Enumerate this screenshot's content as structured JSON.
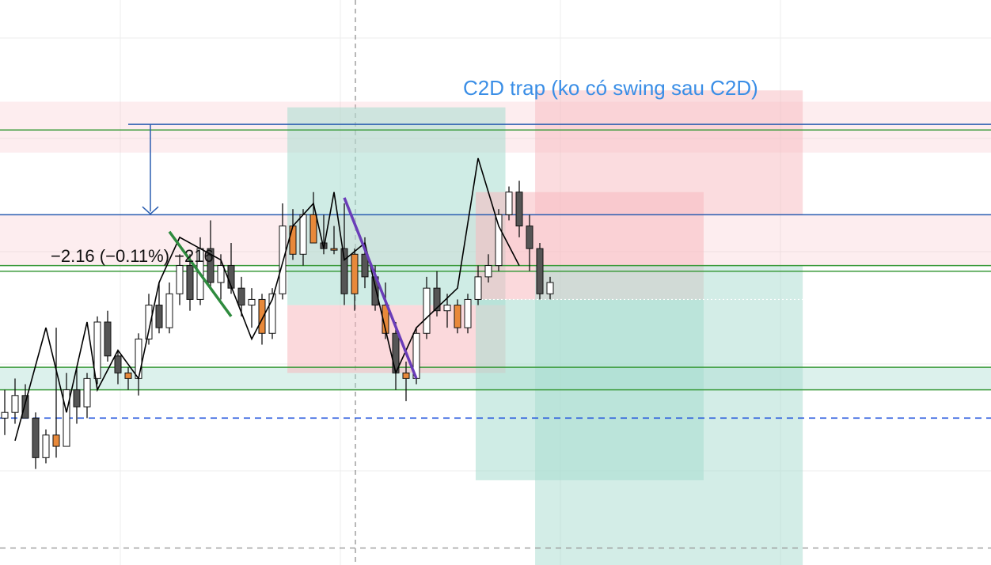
{
  "chart_data": {
    "type": "candlestick",
    "grid": true,
    "legend": "none",
    "annotations": {
      "trap_label": "C2D trap (ko có swing sau C2D)",
      "measure_label": "−2.16 (−0.11%) −216"
    },
    "colors": {
      "candle_up_fill": "#ffffff",
      "candle_down_fill": "#555555",
      "candle_highlight_fill": "#e8893a",
      "candle_border": "#111111",
      "zigzag": "#000000",
      "green_leg": "#2e8b3e",
      "purple_leg": "#6a3db8",
      "green_line": "#3a9a3a",
      "blue_line": "#2a5db0",
      "dashed_blue": "#2255dd",
      "red_zone": "#f7b9c0",
      "teal_zone": "#a8dccf",
      "label_blue": "#3a8ee6"
    },
    "price_range": [
      0,
      100
    ],
    "levels": {
      "green": [
        77,
        53,
        52,
        35,
        31
      ],
      "blue": [
        78,
        62
      ],
      "dotted_white": 47,
      "dashed_blue": 26,
      "dashed_gray": 3
    },
    "candles": [
      {
        "o": 26,
        "h": 31,
        "l": 23,
        "c": 27
      },
      {
        "o": 27,
        "h": 33,
        "l": 25,
        "c": 30
      },
      {
        "o": 30,
        "h": 32,
        "l": 26,
        "c": 26
      },
      {
        "o": 26,
        "h": 27,
        "l": 17,
        "c": 19
      },
      {
        "o": 19,
        "h": 24,
        "l": 18,
        "c": 23
      },
      {
        "o": 23,
        "h": 42,
        "l": 19,
        "c": 21,
        "hl": true
      },
      {
        "o": 21,
        "h": 34,
        "l": 21,
        "c": 31
      },
      {
        "o": 31,
        "h": 35,
        "l": 25,
        "c": 28
      },
      {
        "o": 28,
        "h": 34,
        "l": 26,
        "c": 33
      },
      {
        "o": 33,
        "h": 44,
        "l": 32,
        "c": 43
      },
      {
        "o": 43,
        "h": 45,
        "l": 36,
        "c": 37
      },
      {
        "o": 37,
        "h": 38,
        "l": 32,
        "c": 34
      },
      {
        "o": 34,
        "h": 35,
        "l": 31,
        "c": 33,
        "hl": true
      },
      {
        "o": 33,
        "h": 41,
        "l": 30,
        "c": 40
      },
      {
        "o": 40,
        "h": 48,
        "l": 39,
        "c": 46
      },
      {
        "o": 46,
        "h": 50,
        "l": 41,
        "c": 42
      },
      {
        "o": 42,
        "h": 50,
        "l": 41,
        "c": 48
      },
      {
        "o": 48,
        "h": 55,
        "l": 46,
        "c": 53
      },
      {
        "o": 53,
        "h": 55,
        "l": 45,
        "c": 47
      },
      {
        "o": 47,
        "h": 58,
        "l": 46,
        "c": 56
      },
      {
        "o": 56,
        "h": 61,
        "l": 49,
        "c": 50
      },
      {
        "o": 50,
        "h": 55,
        "l": 47,
        "c": 53
      },
      {
        "o": 53,
        "h": 57,
        "l": 48,
        "c": 49
      },
      {
        "o": 49,
        "h": 51,
        "l": 44,
        "c": 46
      },
      {
        "o": 46,
        "h": 49,
        "l": 42,
        "c": 47
      },
      {
        "o": 47,
        "h": 48,
        "l": 39,
        "c": 41,
        "hl": true
      },
      {
        "o": 41,
        "h": 49,
        "l": 40,
        "c": 48
      },
      {
        "o": 48,
        "h": 64,
        "l": 47,
        "c": 60
      },
      {
        "o": 60,
        "h": 63,
        "l": 54,
        "c": 55,
        "hl": true
      },
      {
        "o": 55,
        "h": 63,
        "l": 53,
        "c": 62
      },
      {
        "o": 62,
        "h": 66,
        "l": 57,
        "c": 57,
        "hl": true
      },
      {
        "o": 57,
        "h": 62,
        "l": 55,
        "c": 56
      },
      {
        "o": 56,
        "h": 60,
        "l": 55,
        "c": 56,
        "hl": true
      },
      {
        "o": 56,
        "h": 64,
        "l": 46,
        "c": 48
      },
      {
        "o": 48,
        "h": 56,
        "l": 45,
        "c": 55,
        "hl": true
      },
      {
        "o": 55,
        "h": 58,
        "l": 49,
        "c": 51
      },
      {
        "o": 51,
        "h": 53,
        "l": 45,
        "c": 46
      },
      {
        "o": 46,
        "h": 50,
        "l": 40,
        "c": 41,
        "hl": true
      },
      {
        "o": 41,
        "h": 43,
        "l": 31,
        "c": 34
      },
      {
        "o": 34,
        "h": 36,
        "l": 29,
        "c": 33,
        "hl": true
      },
      {
        "o": 33,
        "h": 42,
        "l": 32,
        "c": 41
      },
      {
        "o": 41,
        "h": 51,
        "l": 40,
        "c": 49
      },
      {
        "o": 49,
        "h": 52,
        "l": 44,
        "c": 45
      },
      {
        "o": 45,
        "h": 48,
        "l": 42,
        "c": 46
      },
      {
        "o": 46,
        "h": 47,
        "l": 41,
        "c": 42,
        "hl": true
      },
      {
        "o": 42,
        "h": 48,
        "l": 41,
        "c": 47
      },
      {
        "o": 47,
        "h": 53,
        "l": 46,
        "c": 51
      },
      {
        "o": 51,
        "h": 55,
        "l": 50,
        "c": 53
      },
      {
        "o": 53,
        "h": 63,
        "l": 52,
        "c": 62
      },
      {
        "o": 62,
        "h": 67,
        "l": 61,
        "c": 66
      },
      {
        "o": 66,
        "h": 68,
        "l": 58,
        "c": 60
      },
      {
        "o": 60,
        "h": 62,
        "l": 52,
        "c": 56
      },
      {
        "o": 56,
        "h": 57,
        "l": 47,
        "c": 48
      },
      {
        "o": 48,
        "h": 51,
        "l": 47,
        "c": 50
      }
    ],
    "zigzag": [
      [
        1,
        22
      ],
      [
        4,
        42
      ],
      [
        6,
        27
      ],
      [
        8,
        43
      ],
      [
        9,
        31
      ],
      [
        11,
        38
      ],
      [
        13,
        33
      ],
      [
        15,
        50
      ],
      [
        17,
        58
      ],
      [
        21,
        54
      ],
      [
        24,
        40
      ],
      [
        26,
        47
      ],
      [
        28,
        60
      ],
      [
        30,
        64
      ],
      [
        31,
        56
      ],
      [
        32,
        66
      ],
      [
        33,
        54
      ],
      [
        35,
        57
      ],
      [
        38,
        34
      ],
      [
        40,
        42
      ],
      [
        44,
        49
      ],
      [
        46,
        72
      ],
      [
        48,
        60
      ],
      [
        50,
        53
      ]
    ],
    "colored_legs": [
      {
        "from": [
          16,
          59
        ],
        "to": [
          22,
          44
        ],
        "color": "green_leg"
      },
      {
        "from": [
          33,
          65
        ],
        "to": [
          40,
          33
        ],
        "color": "purple_leg"
      }
    ],
    "zones": [
      {
        "x0": 0,
        "x1": 100,
        "y0": 73,
        "y1": 82,
        "color": "red_zone",
        "opacity": 0.25
      },
      {
        "x0": 0,
        "x1": 100,
        "y0": 53,
        "y1": 62,
        "color": "red_zone",
        "opacity": 0.25
      },
      {
        "x0": 0,
        "x1": 100,
        "y0": 31,
        "y1": 35,
        "color": "teal_zone",
        "opacity": 0.4
      },
      {
        "x0": 29,
        "x1": 51,
        "y0": 46,
        "y1": 81,
        "color": "teal_zone",
        "opacity": 0.55
      },
      {
        "x0": 29,
        "x1": 51,
        "y0": 34,
        "y1": 46,
        "color": "red_zone",
        "opacity": 0.55
      },
      {
        "x0": 48,
        "x1": 71,
        "y0": 15,
        "y1": 47,
        "color": "teal_zone",
        "opacity": 0.55
      },
      {
        "x0": 48,
        "x1": 71,
        "y0": 47,
        "y1": 66,
        "color": "red_zone",
        "opacity": 0.55
      },
      {
        "x0": 54,
        "x1": 81,
        "y0": 0,
        "y1": 53,
        "color": "teal_zone",
        "opacity": 0.5
      },
      {
        "x0": 54,
        "x1": 81,
        "y0": 62,
        "y1": 84,
        "color": "red_zone",
        "opacity": 0.5
      }
    ]
  }
}
